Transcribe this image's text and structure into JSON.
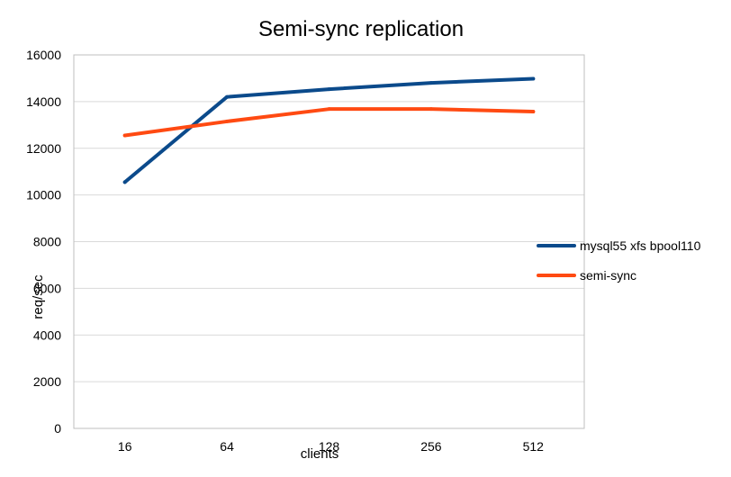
{
  "chart_data": {
    "type": "line",
    "title": "Semi-sync replication",
    "xlabel": "clients",
    "ylabel": "req/sec",
    "categories": [
      "16",
      "64",
      "128",
      "256",
      "512"
    ],
    "ylim": [
      0,
      16000
    ],
    "yticks": [
      0,
      2000,
      4000,
      6000,
      8000,
      10000,
      12000,
      14000,
      16000
    ],
    "grid": true,
    "legend_position": "right",
    "series": [
      {
        "name": "mysql55 xfs bpool110",
        "color": "#0b4a8b",
        "values": [
          10550,
          14200,
          14530,
          14800,
          14980
        ]
      },
      {
        "name": "semi-sync",
        "color": "#ff4a12",
        "values": [
          12550,
          13150,
          13680,
          13680,
          13570
        ]
      }
    ]
  }
}
